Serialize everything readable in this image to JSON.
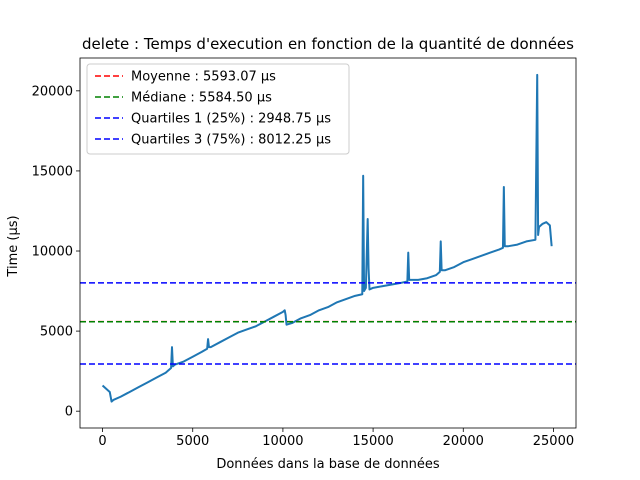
{
  "chart_data": {
    "type": "line",
    "title": "delete : Temps d'execution en fonction de la quantité de données",
    "xlabel": "Données dans la base de données",
    "ylabel": "Time (µs)",
    "xlim": [
      -1250,
      26250
    ],
    "ylim": [
      -1050,
      22050
    ],
    "xticks": [
      0,
      5000,
      10000,
      15000,
      20000,
      25000
    ],
    "yticks": [
      0,
      5000,
      10000,
      15000,
      20000
    ],
    "grid": false,
    "legend_position": "top-left",
    "series": [
      {
        "color": "#1f77b4",
        "x": [
          0,
          200,
          400,
          500,
          600,
          1000,
          1500,
          2000,
          2500,
          3000,
          3500,
          3800,
          3850,
          3900,
          4000,
          4500,
          5000,
          5500,
          5800,
          5850,
          5900,
          6000,
          6500,
          7000,
          7500,
          8000,
          8500,
          9000,
          9500,
          10000,
          10100,
          10150,
          10200,
          10500,
          11000,
          11500,
          12000,
          12500,
          13000,
          13500,
          14000,
          14400,
          14450,
          14500,
          14600,
          14700,
          14750,
          14800,
          15000,
          15500,
          16000,
          16500,
          16900,
          16950,
          17000,
          17500,
          18000,
          18500,
          18700,
          18750,
          18800,
          19000,
          19500,
          20000,
          20500,
          21000,
          21500,
          22000,
          22200,
          22250,
          22300,
          22500,
          23000,
          23500,
          24000,
          24100,
          24150,
          24200,
          24400,
          24600,
          24800,
          24900
        ],
        "values": [
          1600,
          1400,
          1200,
          600,
          700,
          900,
          1200,
          1500,
          1800,
          2100,
          2400,
          2700,
          4000,
          2800,
          2900,
          3100,
          3400,
          3700,
          3900,
          4500,
          4000,
          4000,
          4300,
          4600,
          4900,
          5100,
          5300,
          5600,
          5900,
          6200,
          6300,
          6000,
          5400,
          5500,
          5800,
          6000,
          6300,
          6500,
          6800,
          7000,
          7200,
          7300,
          14700,
          7500,
          7700,
          12000,
          8900,
          7600,
          7700,
          7800,
          7900,
          8000,
          8100,
          9900,
          8200,
          8200,
          8300,
          8500,
          8700,
          10600,
          8800,
          8800,
          9000,
          9300,
          9500,
          9700,
          9900,
          10100,
          10200,
          14000,
          10300,
          10300,
          10400,
          10600,
          10700,
          21000,
          11000,
          11500,
          11700,
          11800,
          11600,
          10300
        ]
      }
    ],
    "hlines": [
      {
        "label": "Moyenne : 5593.07 µs",
        "value": 5593.07,
        "color": "#ff0000"
      },
      {
        "label": "Médiane : 5584.50 µs",
        "value": 5584.5,
        "color": "#008000"
      },
      {
        "label": "Quartiles 1 (25%) : 2948.75 µs",
        "value": 2948.75,
        "color": "#0000ff"
      },
      {
        "label": "Quartiles 3 (75%) : 8012.25 µs",
        "value": 8012.25,
        "color": "#0000ff"
      }
    ]
  }
}
